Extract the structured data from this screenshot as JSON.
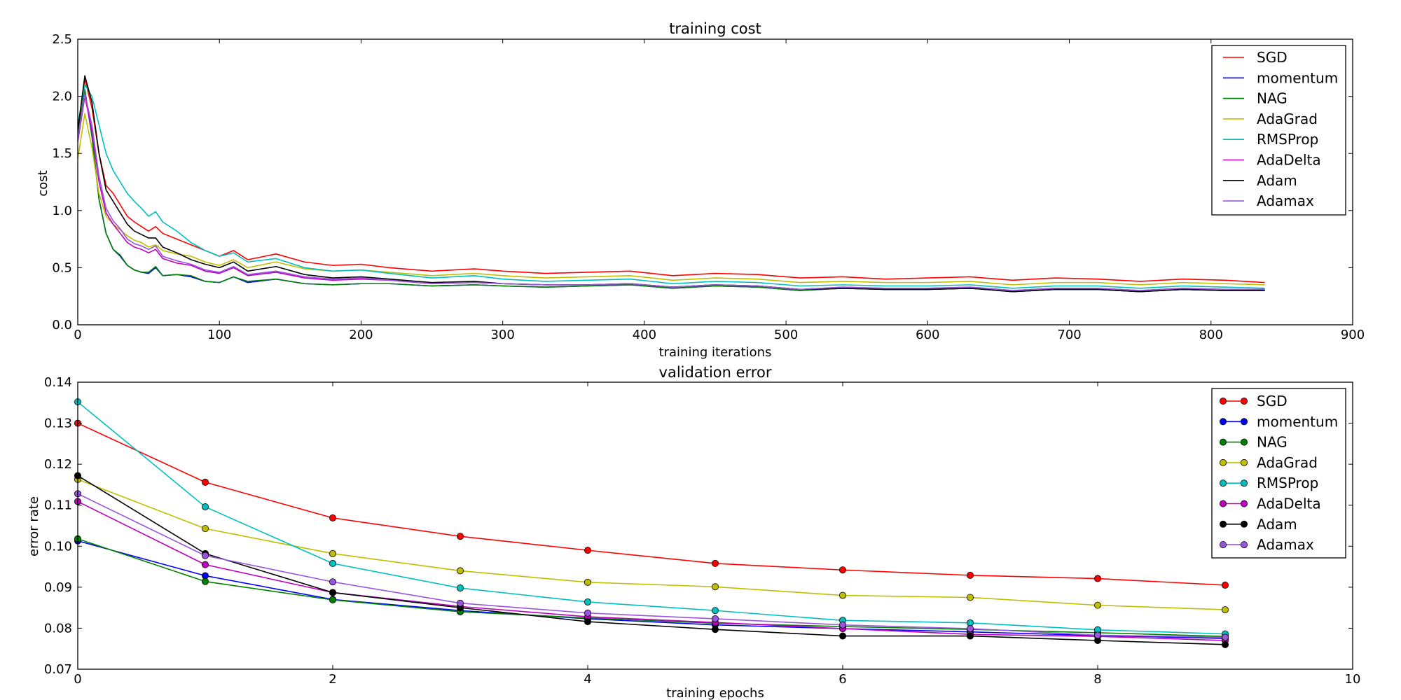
{
  "chart_data": [
    {
      "type": "line",
      "title": "training cost",
      "xlabel": "training iterations",
      "ylabel": "cost",
      "xlim": [
        0,
        900
      ],
      "ylim": [
        0.0,
        2.5
      ],
      "xticks": [
        0,
        100,
        200,
        300,
        400,
        500,
        600,
        700,
        800,
        900
      ],
      "yticks": [
        0.0,
        0.5,
        1.0,
        1.5,
        2.0,
        2.5
      ],
      "xtick_labels": [
        "0",
        "100",
        "200",
        "300",
        "400",
        "500",
        "600",
        "700",
        "800",
        "900"
      ],
      "ytick_labels": [
        "0.0",
        "0.5",
        "1.0",
        "1.5",
        "2.0",
        "2.5"
      ],
      "legend_position": "top-right",
      "x": [
        0,
        5,
        10,
        15,
        20,
        25,
        30,
        35,
        40,
        45,
        50,
        55,
        60,
        70,
        80,
        90,
        100,
        110,
        120,
        140,
        160,
        180,
        200,
        220,
        250,
        280,
        300,
        330,
        360,
        390,
        420,
        450,
        480,
        510,
        540,
        570,
        600,
        630,
        660,
        690,
        720,
        750,
        780,
        810,
        838
      ],
      "series": [
        {
          "name": "SGD",
          "color": "#ff0000",
          "values": [
            1.7,
            2.15,
            1.9,
            1.5,
            1.22,
            1.15,
            1.05,
            0.95,
            0.9,
            0.86,
            0.82,
            0.86,
            0.8,
            0.75,
            0.7,
            0.65,
            0.6,
            0.65,
            0.57,
            0.62,
            0.55,
            0.52,
            0.53,
            0.5,
            0.47,
            0.49,
            0.47,
            0.45,
            0.46,
            0.47,
            0.43,
            0.45,
            0.44,
            0.41,
            0.42,
            0.4,
            0.41,
            0.42,
            0.39,
            0.41,
            0.4,
            0.38,
            0.4,
            0.39,
            0.37
          ]
        },
        {
          "name": "momentum",
          "color": "#0000ff",
          "values": [
            1.65,
            2.05,
            1.65,
            1.1,
            0.8,
            0.66,
            0.6,
            0.52,
            0.48,
            0.46,
            0.45,
            0.5,
            0.43,
            0.44,
            0.42,
            0.38,
            0.37,
            0.42,
            0.37,
            0.4,
            0.36,
            0.35,
            0.36,
            0.36,
            0.34,
            0.35,
            0.34,
            0.33,
            0.34,
            0.35,
            0.32,
            0.34,
            0.33,
            0.3,
            0.32,
            0.31,
            0.31,
            0.32,
            0.29,
            0.31,
            0.31,
            0.29,
            0.31,
            0.3,
            0.3
          ]
        },
        {
          "name": "NAG",
          "color": "#008000",
          "values": [
            1.65,
            2.06,
            1.66,
            1.1,
            0.8,
            0.66,
            0.61,
            0.52,
            0.48,
            0.46,
            0.46,
            0.51,
            0.43,
            0.44,
            0.43,
            0.38,
            0.37,
            0.42,
            0.38,
            0.4,
            0.36,
            0.35,
            0.36,
            0.36,
            0.34,
            0.35,
            0.34,
            0.33,
            0.34,
            0.35,
            0.32,
            0.34,
            0.33,
            0.3,
            0.32,
            0.31,
            0.31,
            0.32,
            0.29,
            0.31,
            0.31,
            0.29,
            0.31,
            0.3,
            0.3
          ]
        },
        {
          "name": "AdaGrad",
          "color": "#bfbf00",
          "values": [
            1.45,
            1.85,
            1.55,
            1.15,
            0.95,
            0.88,
            0.83,
            0.78,
            0.74,
            0.72,
            0.68,
            0.7,
            0.65,
            0.62,
            0.6,
            0.55,
            0.52,
            0.57,
            0.5,
            0.55,
            0.49,
            0.47,
            0.48,
            0.46,
            0.43,
            0.45,
            0.43,
            0.41,
            0.42,
            0.43,
            0.39,
            0.41,
            0.4,
            0.37,
            0.38,
            0.37,
            0.37,
            0.38,
            0.35,
            0.37,
            0.37,
            0.35,
            0.37,
            0.36,
            0.35
          ]
        },
        {
          "name": "RMSProp",
          "color": "#00bfbf",
          "values": [
            1.75,
            2.1,
            2.0,
            1.75,
            1.5,
            1.35,
            1.25,
            1.15,
            1.08,
            1.02,
            0.95,
            0.99,
            0.9,
            0.82,
            0.72,
            0.65,
            0.6,
            0.63,
            0.55,
            0.58,
            0.5,
            0.47,
            0.48,
            0.45,
            0.41,
            0.43,
            0.4,
            0.38,
            0.39,
            0.4,
            0.36,
            0.38,
            0.37,
            0.34,
            0.35,
            0.34,
            0.34,
            0.35,
            0.32,
            0.34,
            0.34,
            0.32,
            0.34,
            0.33,
            0.32
          ]
        },
        {
          "name": "AdaDelta",
          "color": "#bf00bf",
          "values": [
            1.6,
            2.0,
            1.7,
            1.25,
            0.98,
            0.88,
            0.8,
            0.72,
            0.68,
            0.66,
            0.63,
            0.66,
            0.58,
            0.54,
            0.52,
            0.47,
            0.45,
            0.5,
            0.43,
            0.46,
            0.41,
            0.39,
            0.4,
            0.39,
            0.36,
            0.37,
            0.36,
            0.35,
            0.35,
            0.36,
            0.33,
            0.35,
            0.34,
            0.31,
            0.33,
            0.32,
            0.32,
            0.33,
            0.3,
            0.32,
            0.32,
            0.3,
            0.32,
            0.31,
            0.31
          ]
        },
        {
          "name": "Adam",
          "color": "#000000",
          "values": [
            1.7,
            2.18,
            1.95,
            1.5,
            1.18,
            1.08,
            0.98,
            0.88,
            0.82,
            0.79,
            0.76,
            0.76,
            0.68,
            0.63,
            0.57,
            0.53,
            0.5,
            0.55,
            0.47,
            0.51,
            0.44,
            0.41,
            0.42,
            0.4,
            0.37,
            0.38,
            0.36,
            0.35,
            0.35,
            0.36,
            0.33,
            0.35,
            0.34,
            0.31,
            0.32,
            0.31,
            0.31,
            0.32,
            0.29,
            0.31,
            0.31,
            0.29,
            0.31,
            0.3,
            0.3
          ]
        },
        {
          "name": "Adamax",
          "color": "#9955dd",
          "values": [
            1.62,
            2.02,
            1.75,
            1.3,
            1.02,
            0.91,
            0.84,
            0.75,
            0.71,
            0.69,
            0.66,
            0.69,
            0.6,
            0.56,
            0.53,
            0.48,
            0.46,
            0.51,
            0.44,
            0.47,
            0.42,
            0.4,
            0.41,
            0.39,
            0.36,
            0.37,
            0.36,
            0.35,
            0.35,
            0.36,
            0.33,
            0.35,
            0.34,
            0.31,
            0.33,
            0.32,
            0.32,
            0.33,
            0.3,
            0.32,
            0.32,
            0.3,
            0.32,
            0.31,
            0.31
          ]
        }
      ]
    },
    {
      "type": "line",
      "title": "validation error",
      "xlabel": "training epochs",
      "ylabel": "error rate",
      "xlim": [
        0,
        10
      ],
      "ylim": [
        0.07,
        0.14
      ],
      "xticks": [
        0,
        2,
        4,
        6,
        8,
        10
      ],
      "yticks": [
        0.07,
        0.08,
        0.09,
        0.1,
        0.11,
        0.12,
        0.13,
        0.14
      ],
      "xtick_labels": [
        "0",
        "2",
        "4",
        "6",
        "8",
        "10"
      ],
      "ytick_labels": [
        "0.07",
        "0.08",
        "0.09",
        "0.10",
        "0.11",
        "0.12",
        "0.13",
        "0.14"
      ],
      "legend_position": "top-right",
      "markers": true,
      "x": [
        0,
        1,
        2,
        3,
        4,
        5,
        6,
        7,
        8,
        9
      ],
      "series": [
        {
          "name": "SGD",
          "color": "#ff0000",
          "values": [
            0.13,
            0.1156,
            0.1069,
            0.1024,
            0.099,
            0.0958,
            0.0942,
            0.0929,
            0.0921,
            0.0905
          ]
        },
        {
          "name": "momentum",
          "color": "#0000ff",
          "values": [
            0.1013,
            0.0928,
            0.087,
            0.0843,
            0.0823,
            0.0808,
            0.0799,
            0.0791,
            0.0782,
            0.0775
          ]
        },
        {
          "name": "NAG",
          "color": "#008000",
          "values": [
            0.1018,
            0.0914,
            0.0869,
            0.084,
            0.0825,
            0.0812,
            0.0804,
            0.0797,
            0.0789,
            0.078
          ]
        },
        {
          "name": "AdaGrad",
          "color": "#bfbf00",
          "values": [
            0.1163,
            0.1043,
            0.0982,
            0.094,
            0.0912,
            0.0901,
            0.088,
            0.0875,
            0.0856,
            0.0845
          ]
        },
        {
          "name": "RMSProp",
          "color": "#00bfbf",
          "values": [
            0.1352,
            0.1096,
            0.0958,
            0.0898,
            0.0864,
            0.0843,
            0.0819,
            0.0813,
            0.0796,
            0.0786
          ]
        },
        {
          "name": "AdaDelta",
          "color": "#bf00bf",
          "values": [
            0.1109,
            0.0955,
            0.0887,
            0.0853,
            0.0828,
            0.0814,
            0.0799,
            0.0785,
            0.078,
            0.077
          ]
        },
        {
          "name": "Adam",
          "color": "#000000",
          "values": [
            0.1172,
            0.0982,
            0.0887,
            0.085,
            0.0816,
            0.0797,
            0.0781,
            0.0781,
            0.077,
            0.076
          ]
        },
        {
          "name": "Adamax",
          "color": "#9955dd",
          "values": [
            0.1128,
            0.0977,
            0.0913,
            0.0861,
            0.0837,
            0.0823,
            0.0808,
            0.0799,
            0.0783,
            0.0778
          ]
        }
      ]
    }
  ]
}
